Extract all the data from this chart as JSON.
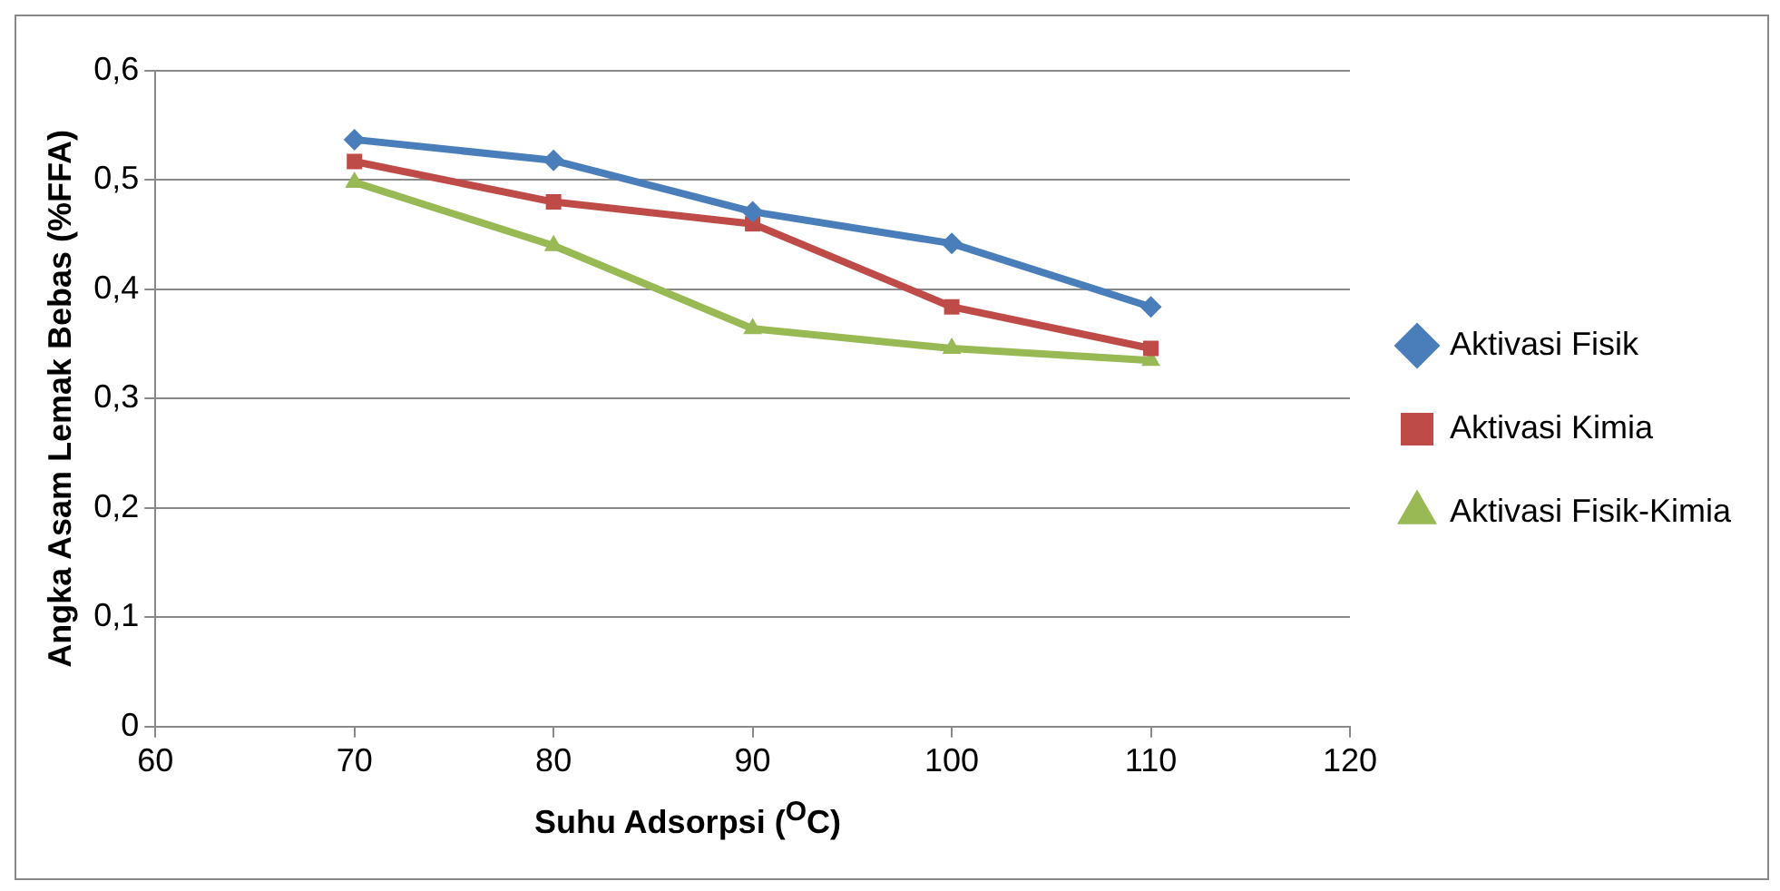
{
  "chart_data": {
    "type": "line",
    "xlabel": "Suhu Adsorpsi ($^{O}$C)",
    "ylabel": "Angka Asam Lemak Bebas (%FFA)",
    "x": [
      70,
      80,
      90,
      100,
      110
    ],
    "series": [
      {
        "name": "Aktivasi Fisik",
        "color": "#4a7ebb",
        "marker": "diamond",
        "values": [
          0.537,
          0.518,
          0.471,
          0.442,
          0.384
        ]
      },
      {
        "name": "Aktivasi Kimia",
        "color": "#be4b48",
        "marker": "square",
        "values": [
          0.517,
          0.48,
          0.46,
          0.384,
          0.346
        ]
      },
      {
        "name": "Aktivasi Fisik-Kimia",
        "color": "#98b954",
        "marker": "triangle",
        "values": [
          0.498,
          0.44,
          0.364,
          0.346,
          0.335
        ]
      }
    ],
    "xlim": [
      60,
      120
    ],
    "xticks": [
      60,
      70,
      80,
      90,
      100,
      110,
      120
    ],
    "ylim": [
      0,
      0.6
    ],
    "yticks": [
      0,
      {
        "value": 0.1,
        "label": "0,1"
      },
      {
        "value": 0.2,
        "label": "0,2"
      },
      {
        "value": 0.3,
        "label": "0,3"
      },
      {
        "value": 0.4,
        "label": "0,4"
      },
      {
        "value": 0.5,
        "label": "0,5"
      },
      {
        "value": 0.6,
        "label": "0,6"
      }
    ],
    "grid": "y",
    "legend": "right",
    "line_style": "solid"
  }
}
